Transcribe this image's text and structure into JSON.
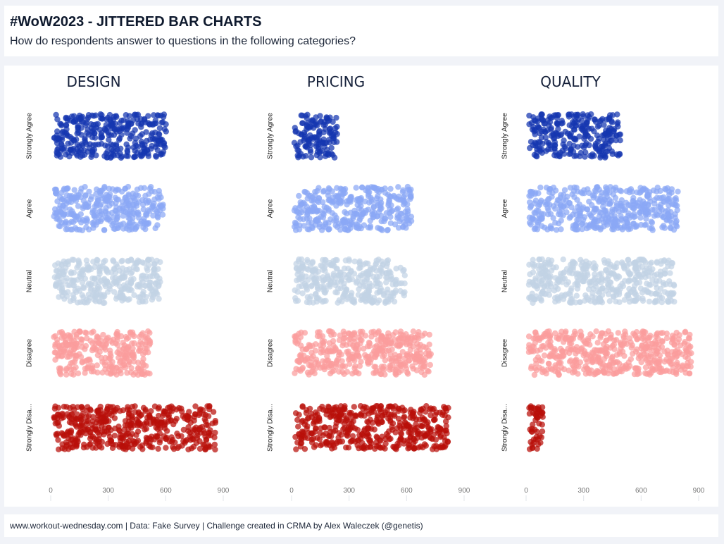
{
  "header": {
    "title": "#WoW2023 - JITTERED BAR CHARTS",
    "subtitle": "How do respondents answer to questions in the following categories?"
  },
  "footer": {
    "text": "www.workout-wednesday.com | Data: Fake Survey | Challenge created in CRMA by Alex Waleczek (@genetis)"
  },
  "chart_data": {
    "type": "scatter",
    "subtype": "jittered-bar",
    "categories": [
      "Strongly Agree",
      "Agree",
      "Neutral",
      "Disagree",
      "Strongly Disagree"
    ],
    "category_display_labels": [
      "Strongly Agree",
      "Agree",
      "Neutral",
      "Disagree",
      "Strongly Disa..."
    ],
    "category_colors": [
      "#1536b0",
      "#8aa7f5",
      "#c2d2e4",
      "#fb9c9c",
      "#b80f0a"
    ],
    "xlim": [
      0,
      900
    ],
    "xticks": [
      0,
      300,
      600,
      900
    ],
    "xtick_labels": [
      "0",
      "300",
      "600",
      "900"
    ],
    "grid": false,
    "legend": "none",
    "facets": [
      {
        "title": "DESIGN",
        "values": [
          610,
          600,
          580,
          530,
          870
        ]
      },
      {
        "title": "PRICING",
        "values": [
          245,
          635,
          600,
          735,
          825
        ]
      },
      {
        "title": "QUALITY",
        "values": [
          500,
          800,
          780,
          870,
          95
        ]
      }
    ]
  }
}
